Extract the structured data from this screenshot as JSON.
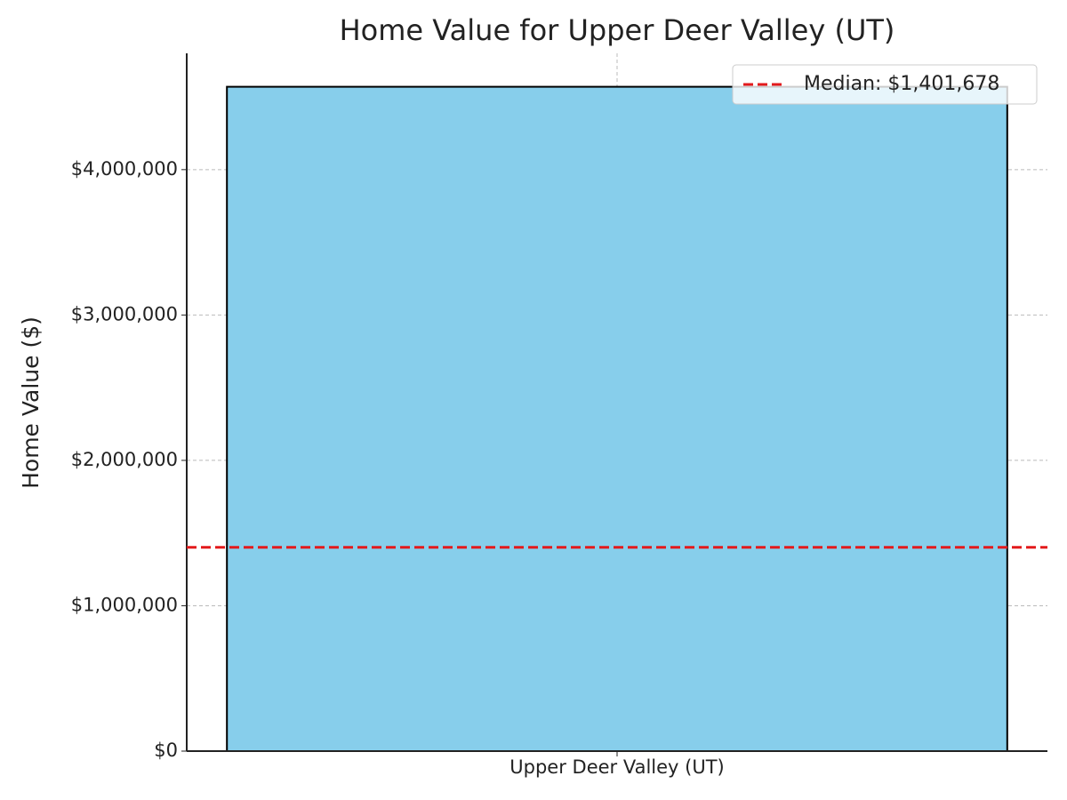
{
  "chart_data": {
    "type": "bar",
    "title": "Home Value for Upper Deer Valley (UT)",
    "ylabel": "Home Value ($)",
    "categories": [
      "Upper Deer Valley (UT)"
    ],
    "values": [
      4570000
    ],
    "color": "#87ceeb",
    "edgecolor": "#000000",
    "ylim": [
      0,
      4800000
    ],
    "yticks": [
      {
        "value": 0,
        "label": "$0"
      },
      {
        "value": 1000000,
        "label": "$1,000,000"
      },
      {
        "value": 2000000,
        "label": "$2,000,000"
      },
      {
        "value": 3000000,
        "label": "$3,000,000"
      },
      {
        "value": 4000000,
        "label": "$4,000,000"
      }
    ],
    "grid": true,
    "median": {
      "value": 1401678,
      "label": "Median: $1,401,678",
      "color": "#e31a1c"
    },
    "legend": "upper-right"
  }
}
